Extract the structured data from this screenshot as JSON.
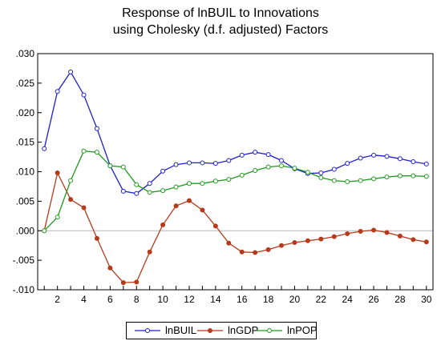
{
  "chart_data": {
    "type": "line",
    "title_line1": "Response of lnBUIL to Innovations",
    "title_line2": "using Cholesky (d.f. adjusted) Factors",
    "xlim": [
      0.5,
      30.5
    ],
    "ylim": [
      -0.01,
      0.03
    ],
    "x_tick_labels": [
      "2",
      "4",
      "6",
      "8",
      "10",
      "12",
      "14",
      "16",
      "18",
      "20",
      "22",
      "24",
      "26",
      "28",
      "30"
    ],
    "x_tick_values": [
      2,
      4,
      6,
      8,
      10,
      12,
      14,
      16,
      18,
      20,
      22,
      24,
      26,
      28,
      30
    ],
    "y_tick_labels": [
      ".030",
      ".025",
      ".020",
      ".015",
      ".010",
      ".005",
      ".000",
      "-.005",
      "-.010"
    ],
    "y_tick_values": [
      0.03,
      0.025,
      0.02,
      0.015,
      0.01,
      0.005,
      0,
      -0.005,
      -0.01
    ],
    "x": [
      1,
      2,
      3,
      4,
      5,
      6,
      7,
      8,
      9,
      10,
      11,
      12,
      13,
      14,
      15,
      16,
      17,
      18,
      19,
      20,
      21,
      22,
      23,
      24,
      25,
      26,
      27,
      28,
      29,
      30
    ],
    "series": [
      {
        "name": "lnBUIL",
        "color": "#1f1fcf",
        "values": [
          0.0139,
          0.0236,
          0.0269,
          0.023,
          0.0173,
          0.011,
          0.0067,
          0.0063,
          0.008,
          0.0101,
          0.0112,
          0.0115,
          0.0115,
          0.0114,
          0.0119,
          0.0128,
          0.0133,
          0.0129,
          0.0119,
          0.0105,
          0.0097,
          0.0098,
          0.0104,
          0.0114,
          0.0123,
          0.0128,
          0.0126,
          0.0122,
          0.0117,
          0.0113
        ]
      },
      {
        "name": "lnGDP",
        "color": "#b53a1a",
        "values": [
          0.0,
          0.0098,
          0.0053,
          0.0039,
          -0.0013,
          -0.0063,
          -0.0088,
          -0.0087,
          -0.0036,
          0.001,
          0.0042,
          0.0051,
          0.0035,
          0.0008,
          -0.0021,
          -0.0036,
          -0.0037,
          -0.0032,
          -0.0025,
          -0.002,
          -0.0017,
          -0.0014,
          -0.001,
          -0.0005,
          -0.0001,
          0.0001,
          -0.0003,
          -0.0009,
          -0.0015,
          -0.0019
        ]
      },
      {
        "name": "lnPOP",
        "color": "#1f9a1f",
        "values": [
          0.0,
          0.0023,
          0.0085,
          0.0135,
          0.0133,
          0.011,
          0.0108,
          0.0078,
          0.0065,
          0.0068,
          0.0074,
          0.008,
          0.008,
          0.0084,
          0.0087,
          0.0094,
          0.0102,
          0.0108,
          0.011,
          0.0106,
          0.0099,
          0.009,
          0.0085,
          0.0083,
          0.0085,
          0.0088,
          0.0091,
          0.0093,
          0.0093,
          0.0092
        ]
      }
    ],
    "legend_position": "bottom-center",
    "grid": false,
    "zero_line_color": "#b8b8b8"
  }
}
